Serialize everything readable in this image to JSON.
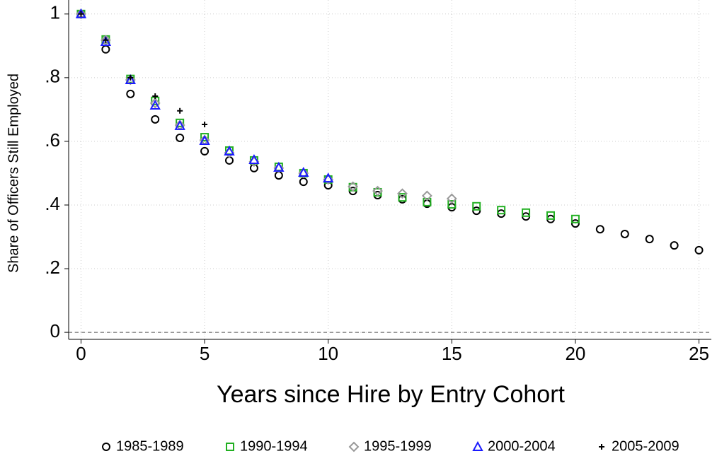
{
  "chart_data": {
    "type": "scatter",
    "x_label": "Years since Hire by Entry Cohort",
    "y_label": "Share of Officers Still Employed",
    "xlim": [
      -0.5,
      25.5
    ],
    "ylim": [
      -0.022,
      1.044
    ],
    "xticks": [
      0,
      5,
      10,
      15,
      20,
      25
    ],
    "yticks": [
      0,
      {
        "value": 0.2,
        "label": ".2"
      },
      {
        "value": 0.4,
        "label": ".4"
      },
      {
        "value": 0.6,
        "label": ".6"
      },
      {
        "value": 0.8,
        "label": ".8"
      },
      1
    ],
    "grid": true,
    "legend_position": "bottom",
    "series": [
      {
        "name": "1985-1989",
        "color": "#000000",
        "marker": "circle",
        "x": [
          0,
          1,
          2,
          3,
          4,
          5,
          6,
          7,
          8,
          9,
          10,
          11,
          12,
          13,
          14,
          15,
          16,
          17,
          18,
          19,
          20,
          21,
          22,
          23,
          24,
          25
        ],
        "values": [
          1.0,
          0.889,
          0.749,
          0.669,
          0.611,
          0.569,
          0.54,
          0.516,
          0.493,
          0.473,
          0.462,
          0.444,
          0.431,
          0.418,
          0.404,
          0.393,
          0.382,
          0.373,
          0.364,
          0.356,
          0.342,
          0.324,
          0.309,
          0.293,
          0.273,
          0.258
        ]
      },
      {
        "name": "1990-1994",
        "color": "#22b022",
        "marker": "square",
        "x": [
          0,
          1,
          2,
          3,
          4,
          5,
          6,
          7,
          8,
          9,
          10,
          11,
          12,
          13,
          14,
          15,
          16,
          17,
          18,
          19,
          20
        ],
        "values": [
          1.0,
          0.92,
          0.796,
          0.727,
          0.658,
          0.613,
          0.571,
          0.54,
          0.52,
          0.5,
          0.48,
          0.456,
          0.44,
          0.424,
          0.409,
          0.402,
          0.396,
          0.384,
          0.376,
          0.367,
          0.356
        ]
      },
      {
        "name": "1995-1999",
        "color": "#999999",
        "marker": "diamond",
        "x": [
          0,
          1,
          2,
          3,
          4,
          5,
          6,
          7,
          8,
          9,
          10,
          11,
          12,
          13,
          14,
          15
        ],
        "values": [
          1.0,
          0.918,
          0.793,
          0.72,
          0.651,
          0.604,
          0.564,
          0.536,
          0.516,
          0.5,
          0.48,
          0.458,
          0.444,
          0.436,
          0.429,
          0.42
        ]
      },
      {
        "name": "2000-2004",
        "color": "#1a1aff",
        "marker": "triangle",
        "x": [
          0,
          1,
          2,
          3,
          4,
          5,
          6,
          7,
          8,
          9,
          10
        ],
        "values": [
          1.0,
          0.913,
          0.793,
          0.713,
          0.649,
          0.602,
          0.569,
          0.542,
          0.518,
          0.502,
          0.484
        ]
      },
      {
        "name": "2005-2009",
        "color": "#000000",
        "marker": "plus",
        "x": [
          0,
          1,
          2,
          3,
          4,
          5
        ],
        "values": [
          1.0,
          0.918,
          0.8,
          0.742,
          0.696,
          0.653
        ]
      }
    ]
  }
}
